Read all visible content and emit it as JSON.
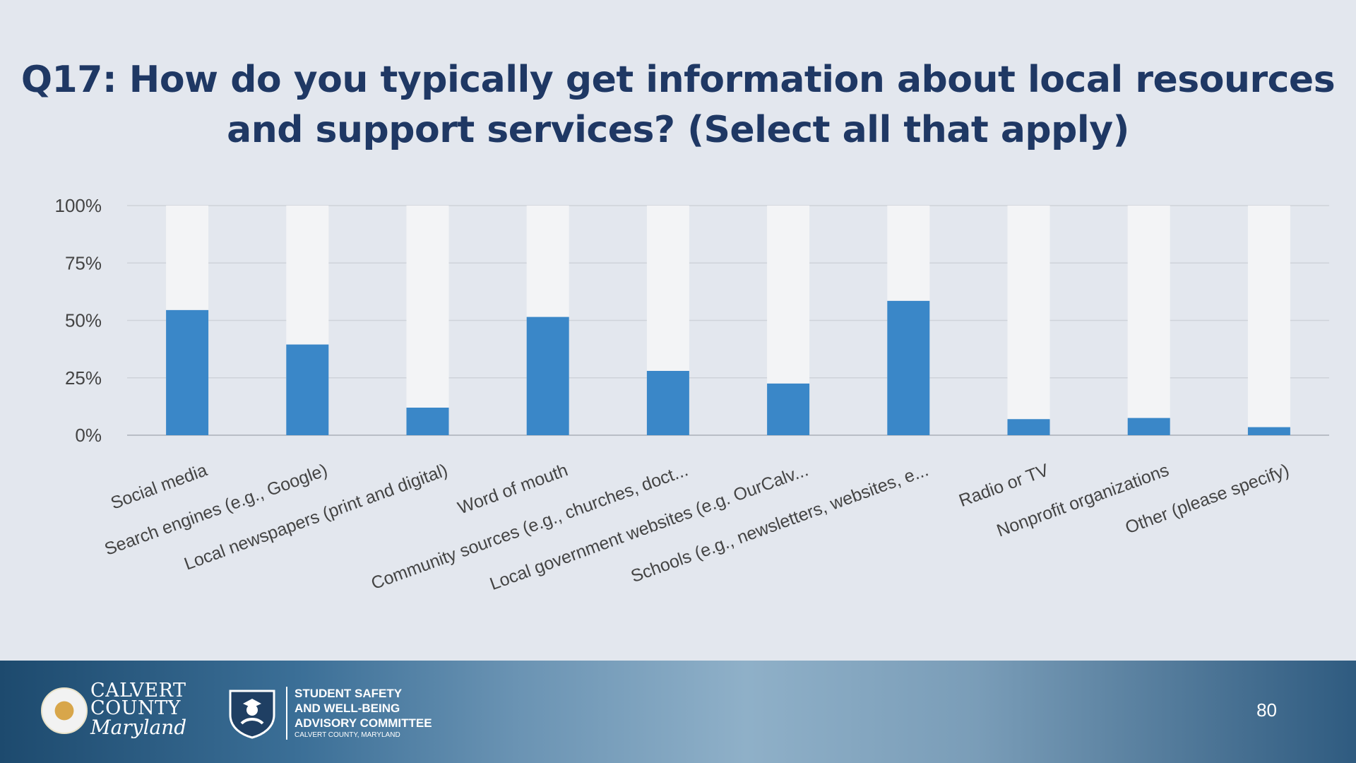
{
  "slide": {
    "title_line1": "Q17: How do you typically get information about local resources",
    "title_line2": "and support services? (Select all that apply)",
    "page_number": "80"
  },
  "footer": {
    "county_line1": "CALVERT",
    "county_line2": "COUNTY",
    "county_line3": "Maryland",
    "committee_line1": "STUDENT SAFETY",
    "committee_line2": "AND WELL-BEING",
    "committee_line3": "ADVISORY COMMITTEE",
    "committee_sub": "CALVERT COUNTY, MARYLAND"
  },
  "colors": {
    "bar": "#3a87c8",
    "bar_remainder": "#f3f4f6",
    "grid": "#cfd3d9",
    "title": "#1f3864"
  },
  "chart_data": {
    "type": "bar",
    "title": "Q17: How do you typically get information about local resources and support services? (Select all that apply)",
    "categories": [
      "Social media",
      "Search engines (e.g., Google)",
      "Local newspapers (print and digital)",
      "Word of mouth",
      "Community sources (e.g., churches, doct...",
      "Local government websites (e.g. OurCalv...",
      "Schools (e.g., newsletters, websites, e...",
      "Radio or TV",
      "Nonprofit organizations",
      "Other (please specify)"
    ],
    "values": [
      54.5,
      39.5,
      12,
      51.5,
      28,
      22.5,
      58.5,
      7,
      7.5,
      3.5
    ],
    "yticks": [
      "0%",
      "25%",
      "50%",
      "75%",
      "100%"
    ],
    "ylim": [
      0,
      100
    ],
    "xlabel": "",
    "ylabel": "",
    "grid": true
  }
}
